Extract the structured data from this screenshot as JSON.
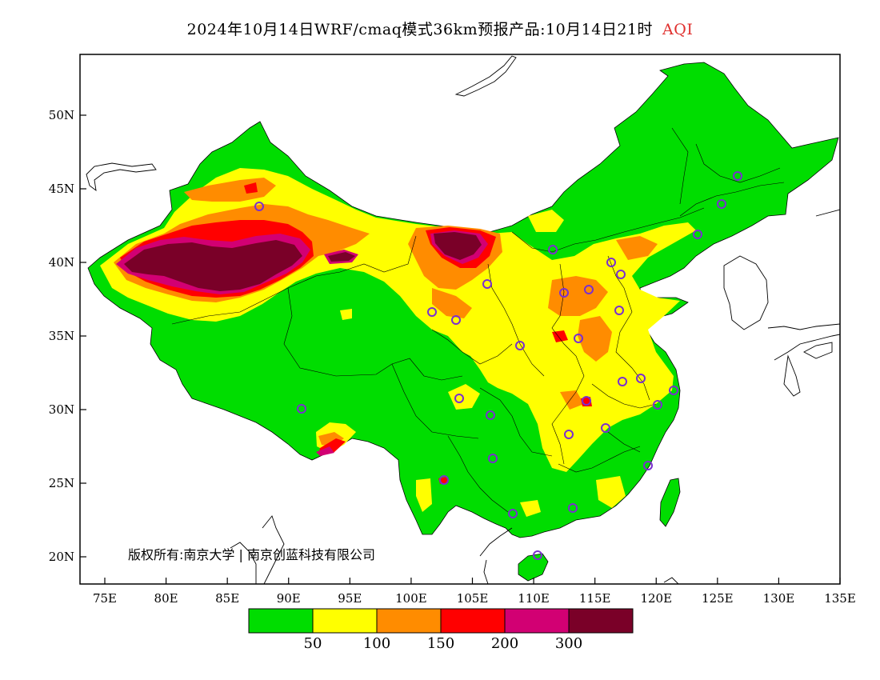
{
  "title": {
    "text": "2024年10月14日WRF/cmaq模式36km预报产品:10月14日21时",
    "variable": "AQI",
    "variable_color": "#e0302e"
  },
  "map": {
    "lat_labels": [
      "50N",
      "45N",
      "40N",
      "35N",
      "30N",
      "25N",
      "20N"
    ],
    "lon_labels": [
      "75E",
      "80E",
      "85E",
      "90E",
      "95E",
      "100E",
      "105E",
      "110E",
      "115E",
      "120E",
      "125E",
      "130E",
      "135E"
    ],
    "copyright": "版权所有:南京大学 | 南京创蓝科技有限公司",
    "station_marker_color": "#7a2fd0"
  },
  "legend": {
    "colors": [
      "#00dd00",
      "#ffff00",
      "#ff8c00",
      "#ff0000",
      "#d20073",
      "#7a0028"
    ],
    "labels": [
      "50",
      "100",
      "150",
      "200",
      "300"
    ]
  }
}
